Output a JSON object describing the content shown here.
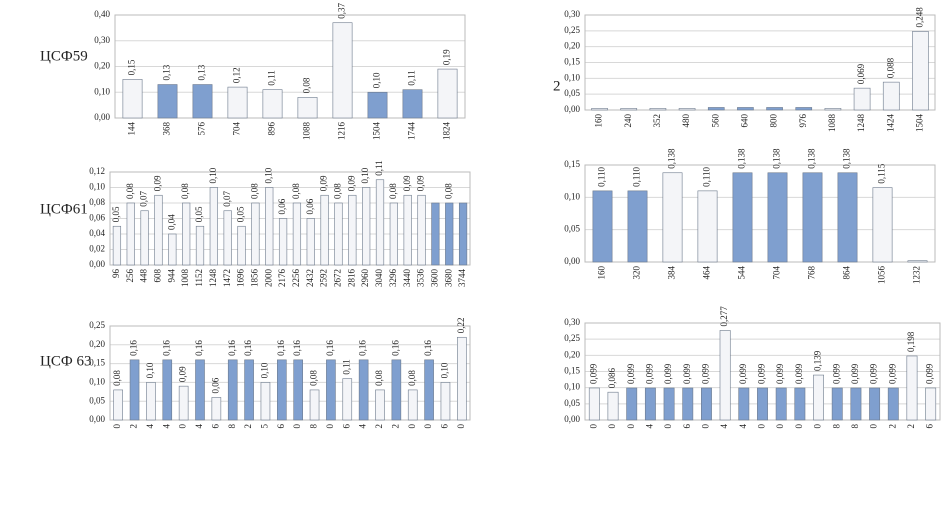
{
  "chart_data": [
    {
      "type": "bar",
      "title": "ЦСФ59",
      "categories": [
        "144",
        "368",
        "576",
        "704",
        "896",
        "1088",
        "1216",
        "1504",
        "1744",
        "1824"
      ],
      "values": [
        0.15,
        0.13,
        0.13,
        0.12,
        0.11,
        0.08,
        0.37,
        0.1,
        0.11,
        0.19
      ],
      "value_labels": [
        "0,15",
        "0,13",
        "0,13",
        "0,12",
        "0,11",
        "0,08",
        "0,37",
        "0,10",
        "0,11",
        "0,19"
      ],
      "colors": [
        "#f4f5f8",
        "#7f9fcf",
        "#7f9fcf",
        "#f4f5f8",
        "#f4f5f8",
        "#f4f5f8",
        "#f4f5f8",
        "#7f9fcf",
        "#7f9fcf",
        "#f4f5f8"
      ],
      "ylim": [
        0,
        0.4
      ],
      "yticks": [
        {
          "value": 0,
          "label": "0,00"
        },
        {
          "value": 0.1,
          "label": "0,10"
        },
        {
          "value": 0.2,
          "label": "0,20"
        },
        {
          "value": 0.3,
          "label": "0,30"
        },
        {
          "value": 0.4,
          "label": "0,40"
        }
      ],
      "grid": true
    },
    {
      "type": "bar",
      "title": "2",
      "categories": [
        "160",
        "240",
        "352",
        "480",
        "560",
        "640",
        "800",
        "976",
        "1088",
        "1248",
        "1424",
        "1504"
      ],
      "values": [
        0.005,
        0.005,
        0.005,
        0.005,
        0.008,
        0.008,
        0.008,
        0.008,
        0.005,
        0.069,
        0.088,
        0.248
      ],
      "value_labels": [
        null,
        null,
        null,
        null,
        null,
        null,
        null,
        null,
        null,
        "0,069",
        "0,088",
        "0,248"
      ],
      "colors": [
        "#f4f5f8",
        "#f4f5f8",
        "#f4f5f8",
        "#f4f5f8",
        "#7f9fcf",
        "#7f9fcf",
        "#7f9fcf",
        "#7f9fcf",
        "#f4f5f8",
        "#f4f5f8",
        "#f4f5f8",
        "#f4f5f8"
      ],
      "ylim": [
        0,
        0.3
      ],
      "yticks": [
        {
          "value": 0,
          "label": "0,00"
        },
        {
          "value": 0.05,
          "label": "0,05"
        },
        {
          "value": 0.1,
          "label": "0,10"
        },
        {
          "value": 0.15,
          "label": "0,15"
        },
        {
          "value": 0.2,
          "label": "0,20"
        },
        {
          "value": 0.25,
          "label": "0,25"
        },
        {
          "value": 0.3,
          "label": "0,30"
        }
      ],
      "grid": true
    },
    {
      "type": "bar",
      "title": "ЦСФ61",
      "categories": [
        "96",
        "256",
        "448",
        "608",
        "944",
        "1008",
        "1152",
        "1248",
        "1472",
        "1696",
        "1856",
        "2000",
        "2176",
        "2256",
        "2432",
        "2592",
        "2672",
        "2816",
        "2960",
        "3040",
        "3296",
        "3440",
        "3536",
        "3600",
        "3680",
        "3744"
      ],
      "values": [
        0.05,
        0.08,
        0.07,
        0.09,
        0.04,
        0.08,
        0.05,
        0.1,
        0.07,
        0.05,
        0.08,
        0.1,
        0.06,
        0.08,
        0.06,
        0.09,
        0.08,
        0.09,
        0.1,
        0.11,
        0.08,
        0.09,
        0.09,
        0.08,
        0.08,
        0.08
      ],
      "value_labels": [
        "0,05",
        "0,08",
        "0,07",
        "0,09",
        "0,04",
        "0,08",
        "0,05",
        "0,10",
        "0,07",
        "0,05",
        "0,08",
        "0,10",
        "0,06",
        "0,08",
        "0,06",
        "0,09",
        "0,08",
        "0,09",
        "0,10",
        "0,11",
        "0,08",
        "0,09",
        "0,09",
        null,
        "0,08",
        null
      ],
      "colors": [
        "#f4f5f8",
        "#f4f5f8",
        "#f4f5f8",
        "#f4f5f8",
        "#f4f5f8",
        "#f4f5f8",
        "#f4f5f8",
        "#f4f5f8",
        "#f4f5f8",
        "#f4f5f8",
        "#f4f5f8",
        "#f4f5f8",
        "#f4f5f8",
        "#f4f5f8",
        "#f4f5f8",
        "#f4f5f8",
        "#f4f5f8",
        "#f4f5f8",
        "#f4f5f8",
        "#f4f5f8",
        "#f4f5f8",
        "#f4f5f8",
        "#f4f5f8",
        "#7f9fcf",
        "#7f9fcf",
        "#7f9fcf"
      ],
      "ylim": [
        0,
        0.12
      ],
      "yticks": [
        {
          "value": 0,
          "label": "0,00"
        },
        {
          "value": 0.02,
          "label": "0,02"
        },
        {
          "value": 0.04,
          "label": "0,04"
        },
        {
          "value": 0.06,
          "label": "0,06"
        },
        {
          "value": 0.08,
          "label": "0,08"
        },
        {
          "value": 0.1,
          "label": "0,10"
        },
        {
          "value": 0.12,
          "label": "0,12"
        }
      ],
      "grid": true
    },
    {
      "type": "bar",
      "categories": [
        "160",
        "320",
        "384",
        "464",
        "544",
        "704",
        "768",
        "864",
        "1056",
        "1232"
      ],
      "values": [
        0.11,
        0.11,
        0.138,
        0.11,
        0.138,
        0.138,
        0.138,
        0.138,
        0.115,
        0.002
      ],
      "value_labels": [
        "0,110",
        "0,110",
        "0,138",
        "0,110",
        "0,138",
        "0,138",
        "0,138",
        "0,138",
        "0,115",
        null
      ],
      "colors": [
        "#7f9fcf",
        "#7f9fcf",
        "#f4f5f8",
        "#f4f5f8",
        "#7f9fcf",
        "#7f9fcf",
        "#7f9fcf",
        "#7f9fcf",
        "#f4f5f8",
        "#f4f5f8"
      ],
      "ylim": [
        0,
        0.15
      ],
      "yticks": [
        {
          "value": 0,
          "label": "0,00"
        },
        {
          "value": 0.05,
          "label": "0,05"
        },
        {
          "value": 0.1,
          "label": "0,10"
        },
        {
          "value": 0.15,
          "label": "0,15"
        }
      ],
      "grid": true
    },
    {
      "type": "bar",
      "title": "ЦСФ 63",
      "categories": [
        "0",
        "2",
        "4",
        "4",
        "0",
        "4",
        "6",
        "8",
        "2",
        "5",
        "6",
        "0",
        "8",
        "0",
        "6",
        "4",
        "2",
        "2",
        "0",
        "0",
        "6",
        "0"
      ],
      "values": [
        0.08,
        0.16,
        0.1,
        0.16,
        0.09,
        0.16,
        0.06,
        0.16,
        0.16,
        0.1,
        0.16,
        0.16,
        0.08,
        0.16,
        0.11,
        0.16,
        0.08,
        0.16,
        0.08,
        0.16,
        0.1,
        0.22
      ],
      "value_labels": [
        "0,08",
        "0,16",
        "0,10",
        "0,16",
        "0,09",
        "0,16",
        "0,06",
        "0,16",
        "0,16",
        "0,10",
        "0,16",
        "0,16",
        "0,08",
        "0,16",
        "0,11",
        "0,16",
        "0,08",
        "0,16",
        "0,08",
        "0,16",
        "0,10",
        "0,22"
      ],
      "colors": [
        "#f4f5f8",
        "#7f9fcf",
        "#f4f5f8",
        "#7f9fcf",
        "#f4f5f8",
        "#7f9fcf",
        "#f4f5f8",
        "#7f9fcf",
        "#7f9fcf",
        "#f4f5f8",
        "#7f9fcf",
        "#7f9fcf",
        "#f4f5f8",
        "#7f9fcf",
        "#f4f5f8",
        "#7f9fcf",
        "#f4f5f8",
        "#7f9fcf",
        "#f4f5f8",
        "#7f9fcf",
        "#f4f5f8",
        "#f4f5f8"
      ],
      "ylim": [
        0,
        0.25
      ],
      "yticks": [
        {
          "value": 0,
          "label": "0,00"
        },
        {
          "value": 0.05,
          "label": "0,05"
        },
        {
          "value": 0.1,
          "label": "0,10"
        },
        {
          "value": 0.15,
          "label": "0,15"
        },
        {
          "value": 0.2,
          "label": "0,20"
        },
        {
          "value": 0.25,
          "label": "0,25"
        }
      ],
      "grid": true
    },
    {
      "type": "bar",
      "categories": [
        "0",
        "0",
        "0",
        "4",
        "0",
        "6",
        "0",
        "4",
        "4",
        "0",
        "0",
        "0",
        "0",
        "8",
        "8",
        "0",
        "2",
        "2",
        "6"
      ],
      "values": [
        0.099,
        0.086,
        0.099,
        0.099,
        0.099,
        0.099,
        0.099,
        0.277,
        0.099,
        0.099,
        0.099,
        0.099,
        0.139,
        0.099,
        0.099,
        0.099,
        0.099,
        0.198,
        0.099
      ],
      "value_labels": [
        "0,099",
        "0,086",
        "0,099",
        "0,099",
        "0,099",
        "0,099",
        "0,099",
        "0,277",
        "0,099",
        "0,099",
        "0,099",
        "0,099",
        "0,139",
        "0,099",
        "0,099",
        "0,099",
        "0,099",
        "0,198",
        "0,099"
      ],
      "colors": [
        "#f4f5f8",
        "#f4f5f8",
        "#7f9fcf",
        "#7f9fcf",
        "#7f9fcf",
        "#7f9fcf",
        "#7f9fcf",
        "#f4f5f8",
        "#7f9fcf",
        "#7f9fcf",
        "#7f9fcf",
        "#7f9fcf",
        "#f4f5f8",
        "#7f9fcf",
        "#7f9fcf",
        "#7f9fcf",
        "#7f9fcf",
        "#f4f5f8",
        "#f4f5f8"
      ],
      "ylim": [
        0,
        0.3
      ],
      "yticks": [
        {
          "value": 0,
          "label": "0,00"
        },
        {
          "value": 0.05,
          "label": "0,05"
        },
        {
          "value": 0.1,
          "label": "0,10"
        },
        {
          "value": 0.15,
          "label": "0,15"
        },
        {
          "value": 0.2,
          "label": "0,20"
        },
        {
          "value": 0.25,
          "label": "0,25"
        },
        {
          "value": 0.3,
          "label": "0,30"
        }
      ],
      "grid": true
    }
  ]
}
